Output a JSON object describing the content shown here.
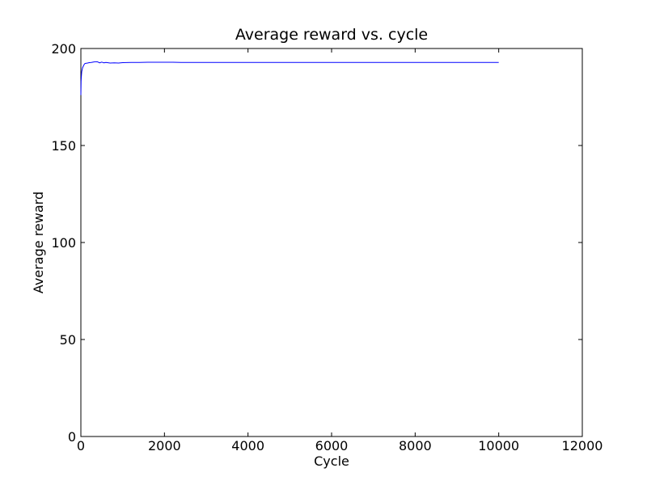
{
  "chart_data": {
    "type": "line",
    "title": "Average reward vs. cycle",
    "xlabel": "Cycle",
    "ylabel": "Average reward",
    "xlim": [
      0,
      12000
    ],
    "ylim": [
      0,
      200
    ],
    "xticks": [
      0,
      2000,
      4000,
      6000,
      8000,
      10000,
      12000
    ],
    "yticks": [
      0,
      50,
      100,
      150,
      200
    ],
    "grid": false,
    "line_color": "#0000ff",
    "series": [
      {
        "x": [
          0,
          5,
          10,
          20,
          30,
          40,
          60,
          80,
          100,
          130,
          160,
          200,
          250,
          300,
          350,
          400,
          450,
          500,
          550,
          600,
          700,
          800,
          900,
          1000,
          1200,
          1400,
          1600,
          1800,
          2000,
          2200,
          2400,
          2600,
          2800,
          3000,
          3500,
          4000,
          4500,
          5000,
          5500,
          6000,
          6500,
          7000,
          7500,
          8000,
          8500,
          9000,
          9500,
          10000
        ],
        "y": [
          176,
          183,
          185,
          188,
          189,
          190,
          191,
          191.8,
          192.3,
          192.4,
          192.5,
          192.7,
          192.8,
          193,
          193.2,
          193.1,
          192.6,
          193,
          192.6,
          192.8,
          192.5,
          192.6,
          192.5,
          192.7,
          192.8,
          192.8,
          192.9,
          192.9,
          192.9,
          192.9,
          192.8,
          192.8,
          192.8,
          192.8,
          192.8,
          192.8,
          192.8,
          192.8,
          192.8,
          192.8,
          192.8,
          192.8,
          192.8,
          192.8,
          192.8,
          192.8,
          192.8,
          192.8
        ]
      }
    ]
  }
}
